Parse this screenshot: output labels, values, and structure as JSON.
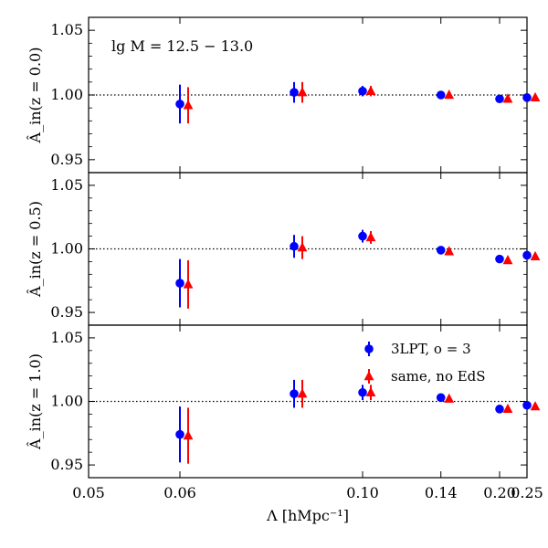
{
  "chart_data": {
    "type": "scatter",
    "x_scale": "reciprocal",
    "xlabel": "Λ [hMpc⁻¹]",
    "x_ticks": [
      0.05,
      0.06,
      0.1,
      0.14,
      0.2,
      0.25
    ],
    "x_tick_labels": [
      "0.05",
      "0.06",
      "0.10",
      "0.14",
      "0.20",
      "0.25"
    ],
    "xlim": [
      0.05,
      0.25
    ],
    "ylim": [
      0.94,
      1.06
    ],
    "y_ticks": [
      0.95,
      1.0,
      1.05
    ],
    "y_tick_labels": [
      "0.95",
      "1.00",
      "1.05"
    ],
    "reference_line": 1.0,
    "annotation": "lg M = 12.5 − 13.0",
    "legend": {
      "placement": "top-right of bottom panel",
      "entries": [
        "3LPT, o = 3",
        "same, no EdS"
      ]
    },
    "colors": {
      "series_1": "#0000ff",
      "series_2": "#ff0000"
    },
    "panels": [
      {
        "ylabel": "Â_in(z = 0.0)",
        "series": [
          {
            "name": "3LPT, o = 3",
            "marker": "circle",
            "color": "#0000ff",
            "x": [
              0.06,
              0.08,
              0.1,
              0.14,
              0.2,
              0.25
            ],
            "y": [
              0.993,
              1.002,
              1.003,
              1.0,
              0.997,
              0.998
            ],
            "err": [
              0.015,
              0.008,
              0.004,
              0.002,
              0.002,
              0.001
            ]
          },
          {
            "name": "same, no EdS",
            "marker": "triangle",
            "color": "#ff0000",
            "x": [
              0.06,
              0.08,
              0.1,
              0.14,
              0.2,
              0.25
            ],
            "y": [
              0.992,
              1.002,
              1.003,
              1.0,
              0.997,
              0.998
            ],
            "err": [
              0.014,
              0.008,
              0.004,
              0.002,
              0.002,
              0.001
            ]
          }
        ]
      },
      {
        "ylabel": "Â_in(z = 0.5)",
        "series": [
          {
            "name": "3LPT, o = 3",
            "marker": "circle",
            "color": "#0000ff",
            "x": [
              0.06,
              0.08,
              0.1,
              0.14,
              0.2,
              0.25
            ],
            "y": [
              0.973,
              1.002,
              1.01,
              0.999,
              0.992,
              0.995
            ],
            "err": [
              0.019,
              0.009,
              0.005,
              0.002,
              0.002,
              0.001
            ]
          },
          {
            "name": "same, no EdS",
            "marker": "triangle",
            "color": "#ff0000",
            "x": [
              0.06,
              0.08,
              0.1,
              0.14,
              0.2,
              0.25
            ],
            "y": [
              0.972,
              1.001,
              1.009,
              0.998,
              0.991,
              0.994
            ],
            "err": [
              0.019,
              0.009,
              0.005,
              0.002,
              0.002,
              0.001
            ]
          }
        ]
      },
      {
        "ylabel": "Â_in(z = 1.0)",
        "series": [
          {
            "name": "3LPT, o = 3",
            "marker": "circle",
            "color": "#0000ff",
            "x": [
              0.06,
              0.08,
              0.1,
              0.14,
              0.2,
              0.25
            ],
            "y": [
              0.974,
              1.006,
              1.007,
              1.003,
              0.994,
              0.997
            ],
            "err": [
              0.022,
              0.011,
              0.006,
              0.002,
              0.002,
              0.001
            ]
          },
          {
            "name": "same, no EdS",
            "marker": "triangle",
            "color": "#ff0000",
            "x": [
              0.06,
              0.08,
              0.1,
              0.14,
              0.2,
              0.25
            ],
            "y": [
              0.973,
              1.006,
              1.007,
              1.002,
              0.994,
              0.996
            ],
            "err": [
              0.022,
              0.011,
              0.006,
              0.002,
              0.002,
              0.001
            ]
          }
        ]
      }
    ]
  }
}
